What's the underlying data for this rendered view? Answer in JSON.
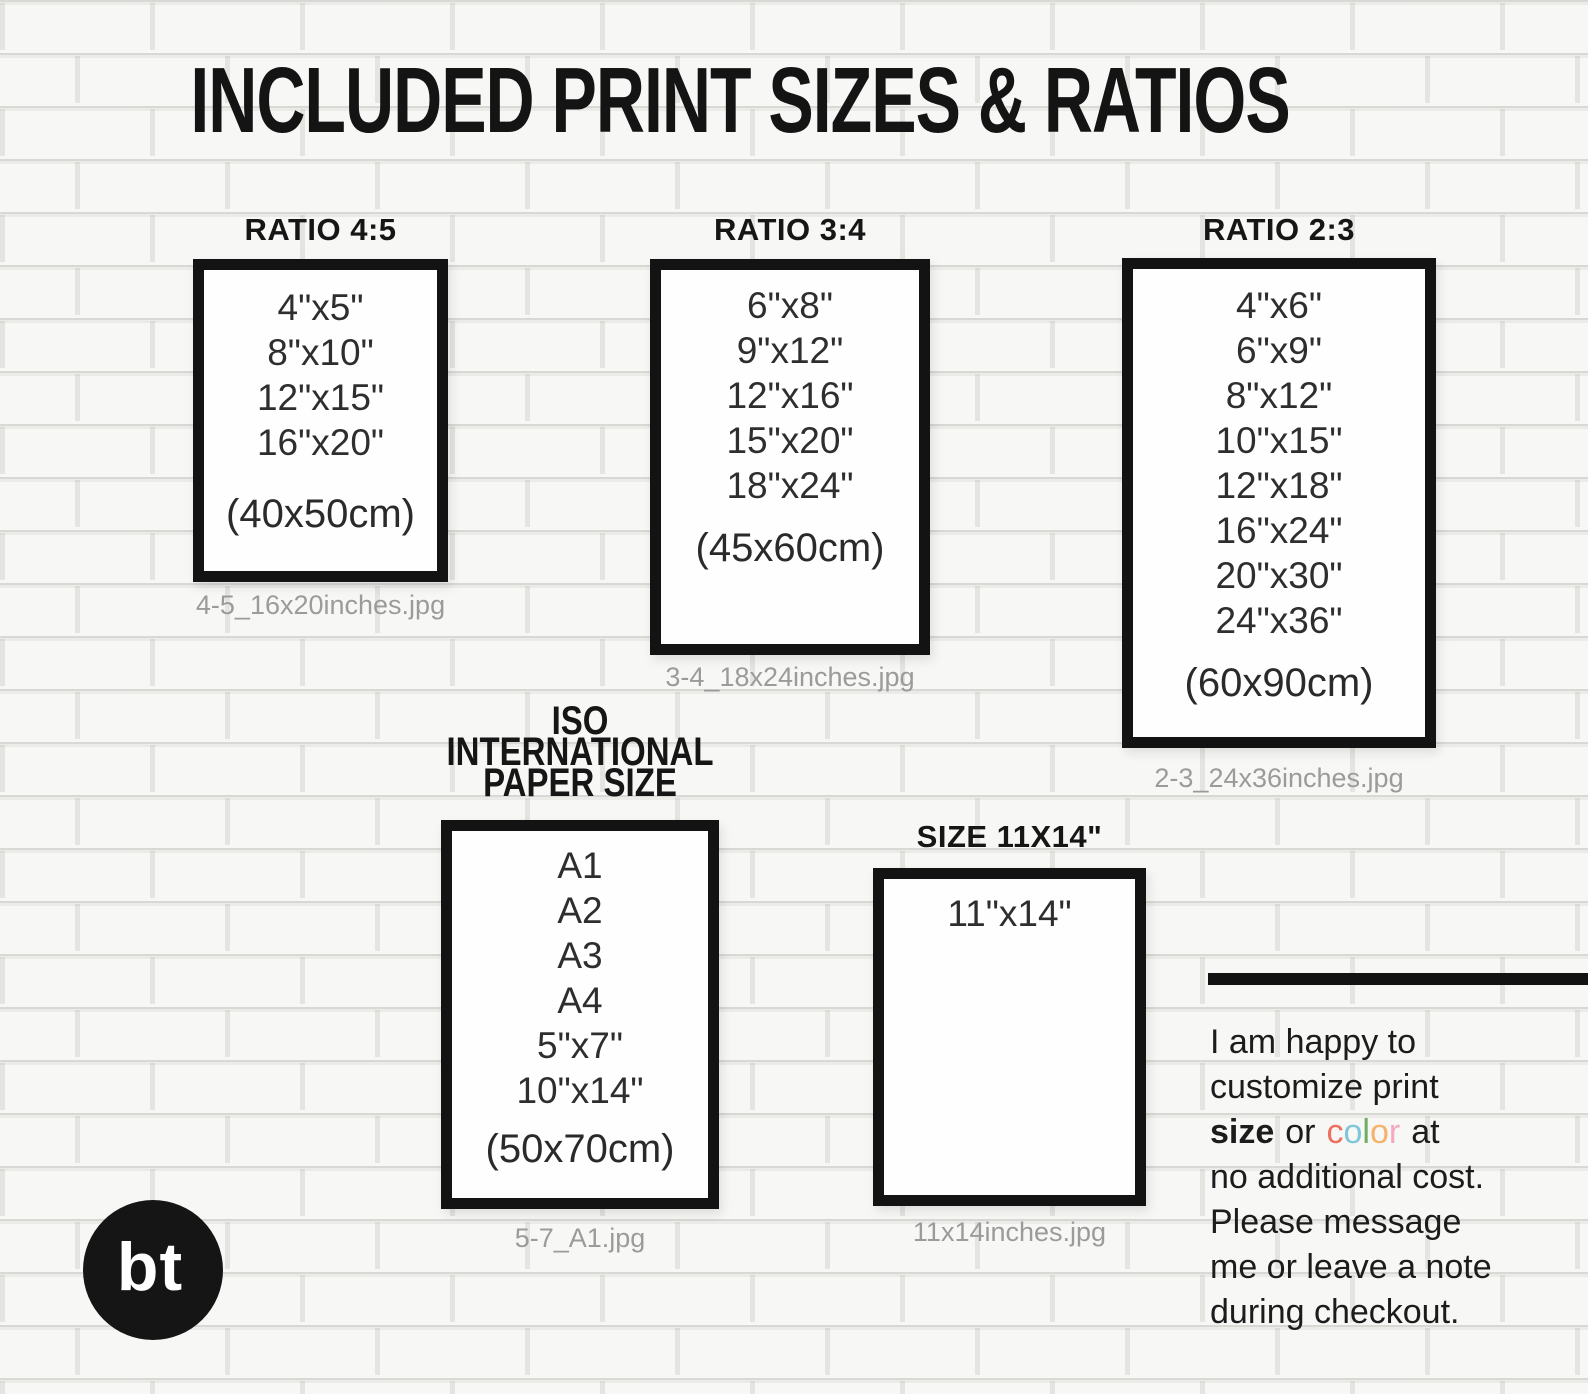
{
  "title": "INCLUDED PRINT SIZES & RATIOS",
  "columns": [
    {
      "header": "RATIO 4:5",
      "sizes": [
        "4\"x5\"",
        "8\"x10\"",
        "12\"x15\"",
        "16\"x20\""
      ],
      "metric": "(40x50cm)",
      "caption": "4-5_16x20inches.jpg"
    },
    {
      "header": "RATIO 3:4",
      "sizes": [
        "6\"x8\"",
        "9\"x12\"",
        "12\"x16\"",
        "15\"x20\"",
        "18\"x24\""
      ],
      "metric": "(45x60cm)",
      "caption": "3-4_18x24inches.jpg"
    },
    {
      "header": "RATIO 2:3",
      "sizes": [
        "4\"x6\"",
        "6\"x9\"",
        "8\"x12\"",
        "10\"x15\"",
        "12\"x18\"",
        "16\"x24\"",
        "20\"x30\"",
        "24\"x36\""
      ],
      "metric": "(60x90cm)",
      "caption": "2-3_24x36inches.jpg"
    },
    {
      "header_lines": [
        "ISO",
        "INTERNATIONAL",
        "PAPER SIZE"
      ],
      "sizes": [
        "A1",
        "A2",
        "A3",
        "A4",
        "5\"x7\"",
        "10\"x14\""
      ],
      "metric": "(50x70cm)",
      "caption": "5-7_A1.jpg"
    },
    {
      "header": "SIZE 11X14\"",
      "sizes": [
        "11\"x14\""
      ],
      "caption": "11x14inches.jpg"
    }
  ],
  "note": {
    "lines": [
      "I am happy to",
      "customize print"
    ],
    "size_word": "size",
    "or_word": "or",
    "color_word": [
      {
        "ch": "c",
        "color": "#ec7163"
      },
      {
        "ch": "o",
        "color": "#7fc6da"
      },
      {
        "ch": "l",
        "color": "#6fae61"
      },
      {
        "ch": "o",
        "color": "#f5b26c"
      },
      {
        "ch": "r",
        "color": "#f3a9c2"
      }
    ],
    "at_word": "at",
    "lines_after": [
      "no additional cost.",
      "Please message",
      "me or leave a note",
      "during checkout."
    ]
  },
  "logo": {
    "text": "bt",
    "bg": "#151515",
    "fg": "#ffffff"
  },
  "ink_color": "#141414",
  "caption_color": "#9b9b9b"
}
